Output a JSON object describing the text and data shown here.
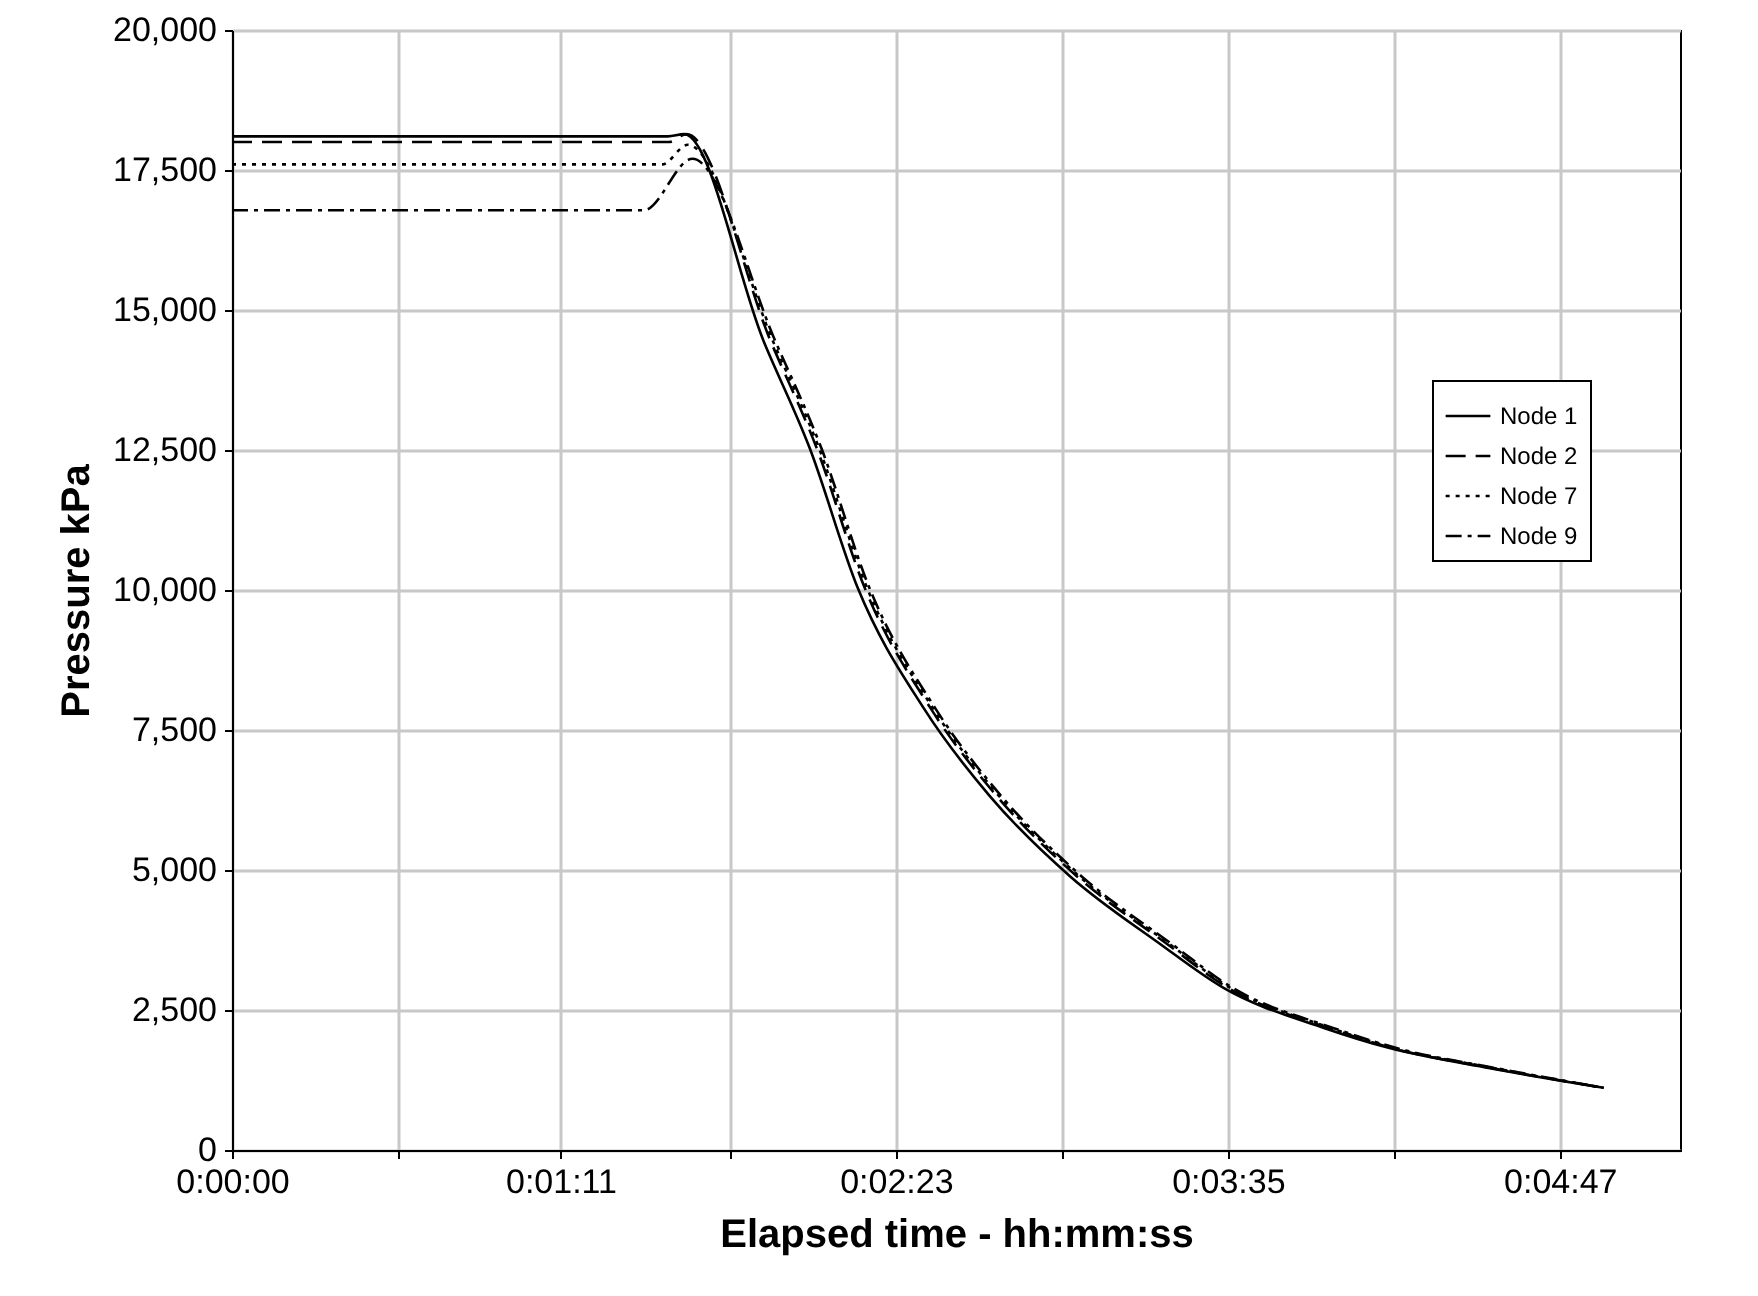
{
  "chart_data": {
    "type": "line",
    "xlabel": "Elapsed time - hh:mm:ss",
    "ylabel": "Pressure kPa",
    "xlim": [
      0,
      0.08694
    ],
    "ylim": [
      0,
      20000
    ],
    "xticks": [
      {
        "value": 0,
        "label": "0:00:00"
      },
      {
        "value": 0.009965,
        "label": null
      },
      {
        "value": 0.019722,
        "label": "0:01:11"
      },
      {
        "value": 0.029896,
        "label": null
      },
      {
        "value": 0.039861,
        "label": "0:02:23"
      },
      {
        "value": 0.049826,
        "label": null
      },
      {
        "value": 0.059792,
        "label": "0:03:35"
      },
      {
        "value": 0.069757,
        "label": null
      },
      {
        "value": 0.079722,
        "label": "0:04:47"
      }
    ],
    "yticks": [
      0,
      {
        "value": 2500,
        "label": "2,500"
      },
      {
        "value": 5000,
        "label": "5,000"
      },
      {
        "value": 7500,
        "label": "7,500"
      },
      {
        "value": 10000,
        "label": "10,000"
      },
      {
        "value": 12500,
        "label": "12,500"
      },
      {
        "value": 15000,
        "label": "15,000"
      },
      {
        "value": 17500,
        "label": "17,500"
      },
      {
        "value": 20000,
        "label": "20,000"
      }
    ],
    "grid": true,
    "legend": "right",
    "marker": "none",
    "series": [
      {
        "name": "Node 1",
        "color": "#000000",
        "line_style": "solid",
        "x": [
          0,
          0.02617,
          0.02714,
          0.03194,
          0.03469,
          0.03758,
          0.04153,
          0.0455,
          0.05031,
          0.05558,
          0.05956,
          0.06556,
          0.0695,
          0.07553,
          0.08236
        ],
        "values": [
          18100,
          18100,
          18140,
          14430,
          12530,
          10030,
          7890,
          6320,
          4890,
          3710,
          2890,
          2180,
          1820,
          1460,
          1110
        ]
      },
      {
        "name": "Node 2",
        "color": "#000000",
        "line_style": "dashed",
        "x": [
          0,
          0.02625,
          0.02728,
          0.03236,
          0.03511,
          0.038,
          0.04194,
          0.04592,
          0.05072,
          0.056,
          0.05983,
          0.06583,
          0.06964,
          0.07567,
          0.08236
        ],
        "values": [
          18000,
          18000,
          18140,
          14430,
          12530,
          10030,
          7890,
          6320,
          4890,
          3710,
          2890,
          2180,
          1820,
          1460,
          1110
        ]
      },
      {
        "name": "Node 7",
        "color": "#000000",
        "line_style": "dotted",
        "x": [
          0,
          0.02583,
          0.02736,
          0.0325,
          0.03525,
          0.03814,
          0.04208,
          0.04606,
          0.05086,
          0.05614,
          0.05997,
          0.06597,
          0.06978,
          0.07581,
          0.08236
        ],
        "values": [
          17600,
          17600,
          17950,
          14430,
          12530,
          10030,
          7890,
          6320,
          4890,
          3710,
          2890,
          2180,
          1820,
          1460,
          1110
        ]
      },
      {
        "name": "Node 9",
        "color": "#000000",
        "line_style": "dashdot",
        "x": [
          0,
          0.02472,
          0.02764,
          0.03264,
          0.03539,
          0.03828,
          0.04222,
          0.04619,
          0.051,
          0.05628,
          0.06011,
          0.06611,
          0.06992,
          0.07594,
          0.08236
        ],
        "values": [
          16780,
          16780,
          17700,
          14430,
          12530,
          10030,
          7890,
          6320,
          4890,
          3710,
          2890,
          2180,
          1820,
          1460,
          1110
        ]
      }
    ]
  }
}
